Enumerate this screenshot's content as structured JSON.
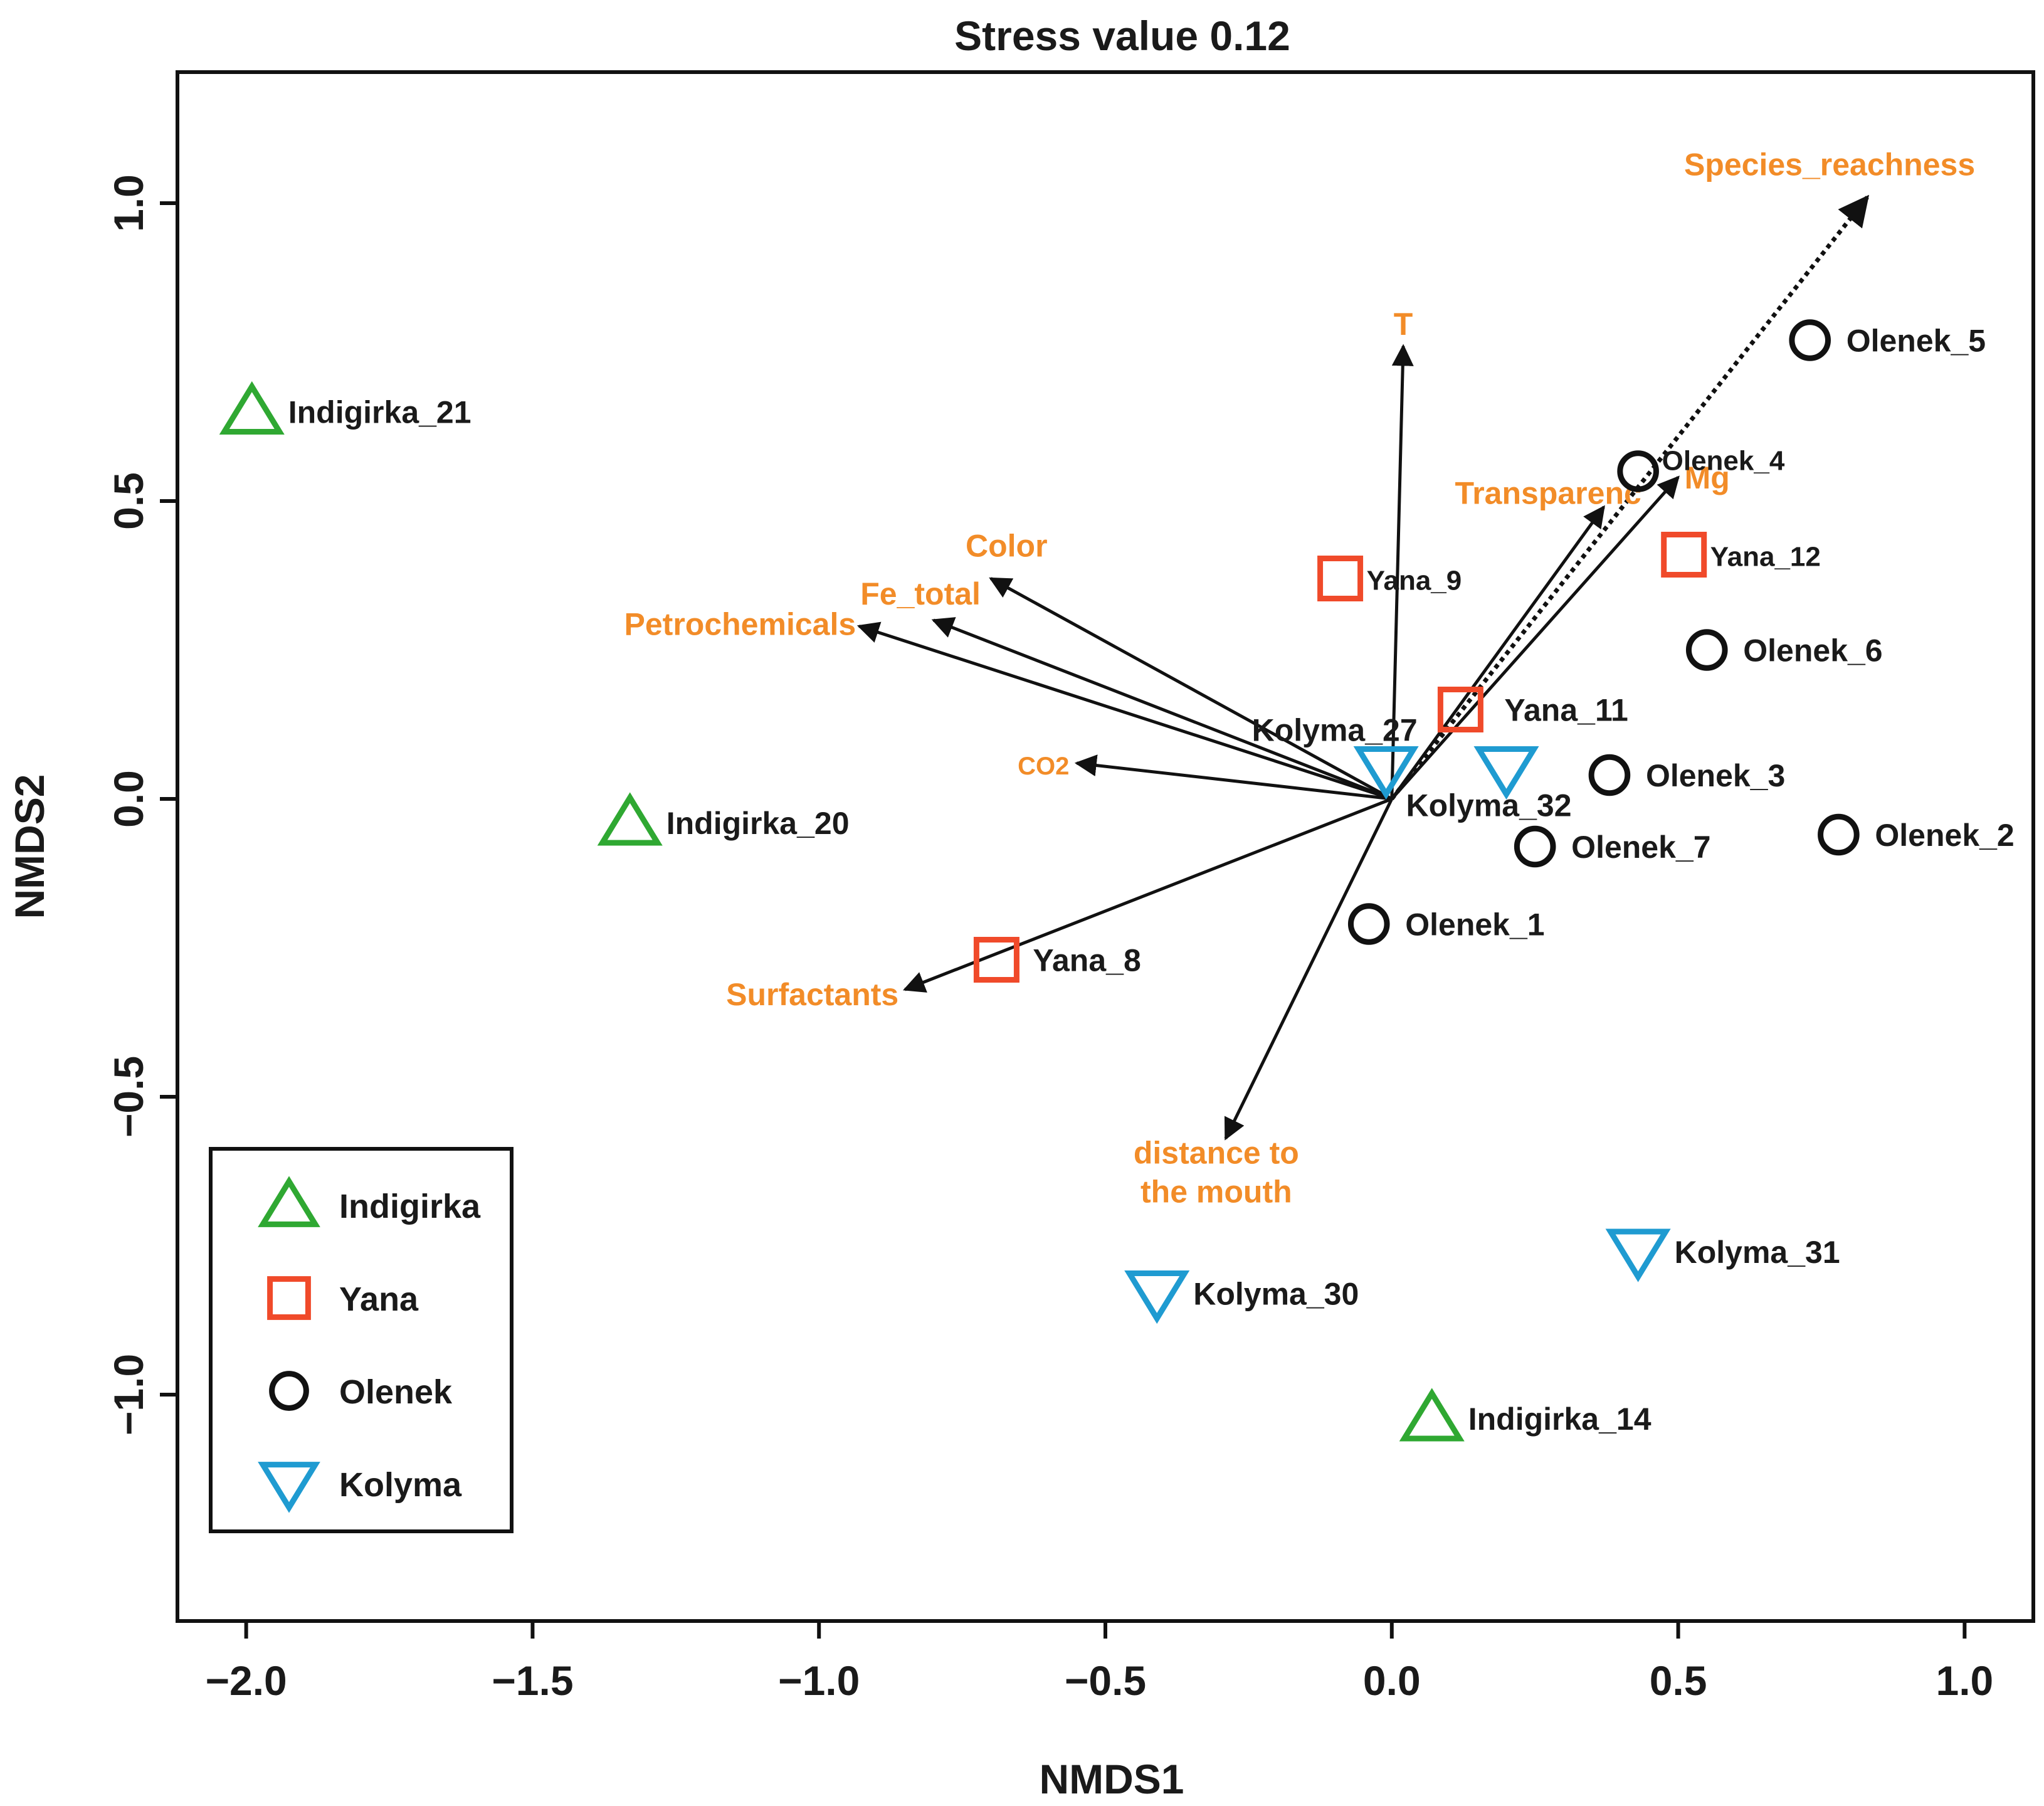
{
  "chart_data": {
    "type": "scatter",
    "title": "Stress value 0.12",
    "xlabel": "NMDS1",
    "ylabel": "NMDS2",
    "xlim": [
      -2.12,
      1.12
    ],
    "ylim": [
      -1.38,
      1.22
    ],
    "xticks": [
      -2.0,
      -1.5,
      -1.0,
      -0.5,
      0.0,
      0.5,
      1.0
    ],
    "yticks": [
      -1.0,
      -0.5,
      0.0,
      0.5,
      1.0
    ],
    "xtick_labels": [
      "−2.0",
      "−1.5",
      "−1.0",
      "−0.5",
      "0.0",
      "0.5",
      "1.0"
    ],
    "ytick_labels": [
      "−1.0",
      "−0.5",
      "0.0",
      "0.5",
      "1.0"
    ],
    "grid": false,
    "legend_position": "bottom-left",
    "groups": [
      {
        "name": "Indigirka",
        "marker": "triangle-up",
        "color": "#2fa832"
      },
      {
        "name": "Yana",
        "marker": "square",
        "color": "#f04a2a"
      },
      {
        "name": "Olenek",
        "marker": "circle",
        "color": "#111111"
      },
      {
        "name": "Kolyma",
        "marker": "triangle-down",
        "color": "#1f9bd1"
      }
    ],
    "points": [
      {
        "label": "Indigirka_21",
        "group": "Indigirka",
        "x": -1.99,
        "y": 0.65
      },
      {
        "label": "Indigirka_20",
        "group": "Indigirka",
        "x": -1.33,
        "y": -0.04
      },
      {
        "label": "Indigirka_14",
        "group": "Indigirka",
        "x": 0.07,
        "y": -1.04
      },
      {
        "label": "Yana_9",
        "group": "Yana",
        "x": -0.09,
        "y": 0.37
      },
      {
        "label": "Yana_11",
        "group": "Yana",
        "x": 0.12,
        "y": 0.15
      },
      {
        "label": "Yana_12",
        "group": "Yana",
        "x": 0.51,
        "y": 0.41
      },
      {
        "label": "Yana_8",
        "group": "Yana",
        "x": -0.69,
        "y": -0.27
      },
      {
        "label": "Olenek_5",
        "group": "Olenek",
        "x": 0.73,
        "y": 0.77
      },
      {
        "label": "Olenek_4",
        "group": "Olenek",
        "x": 0.43,
        "y": 0.55
      },
      {
        "label": "Olenek_6",
        "group": "Olenek",
        "x": 0.55,
        "y": 0.25
      },
      {
        "label": "Olenek_3",
        "group": "Olenek",
        "x": 0.38,
        "y": 0.04
      },
      {
        "label": "Olenek_2",
        "group": "Olenek",
        "x": 0.78,
        "y": -0.06
      },
      {
        "label": "Olenek_7",
        "group": "Olenek",
        "x": 0.25,
        "y": -0.08
      },
      {
        "label": "Olenek_1",
        "group": "Olenek",
        "x": -0.04,
        "y": -0.21
      },
      {
        "label": "Kolyma_27",
        "group": "Kolyma",
        "x": -0.01,
        "y": 0.05
      },
      {
        "label": "Kolyma_32",
        "group": "Kolyma",
        "x": 0.2,
        "y": 0.05
      },
      {
        "label": "Kolyma_30",
        "group": "Kolyma",
        "x": -0.41,
        "y": -0.83
      },
      {
        "label": "Kolyma_31",
        "group": "Kolyma",
        "x": 0.43,
        "y": -0.76
      }
    ],
    "vectors": [
      {
        "label": "Species_reachness",
        "x": 0.83,
        "y": 1.01,
        "dotted": true
      },
      {
        "label": "T",
        "x": 0.02,
        "y": 0.76
      },
      {
        "label": "Transparenc",
        "x": 0.37,
        "y": 0.49
      },
      {
        "label": "Mg",
        "x": 0.5,
        "y": 0.54
      },
      {
        "label": "Color",
        "x": -0.7,
        "y": 0.37
      },
      {
        "label": "Fe_total",
        "x": -0.8,
        "y": 0.3
      },
      {
        "label": "Petrochemicals",
        "x": -0.93,
        "y": 0.29
      },
      {
        "label": "CO2",
        "x": -0.55,
        "y": 0.06
      },
      {
        "label": "Surfactants",
        "x": -0.85,
        "y": -0.32
      },
      {
        "label": "distance to\nthe mouth",
        "x": -0.29,
        "y": -0.57
      }
    ],
    "vector_label_color": "#f28c28"
  }
}
